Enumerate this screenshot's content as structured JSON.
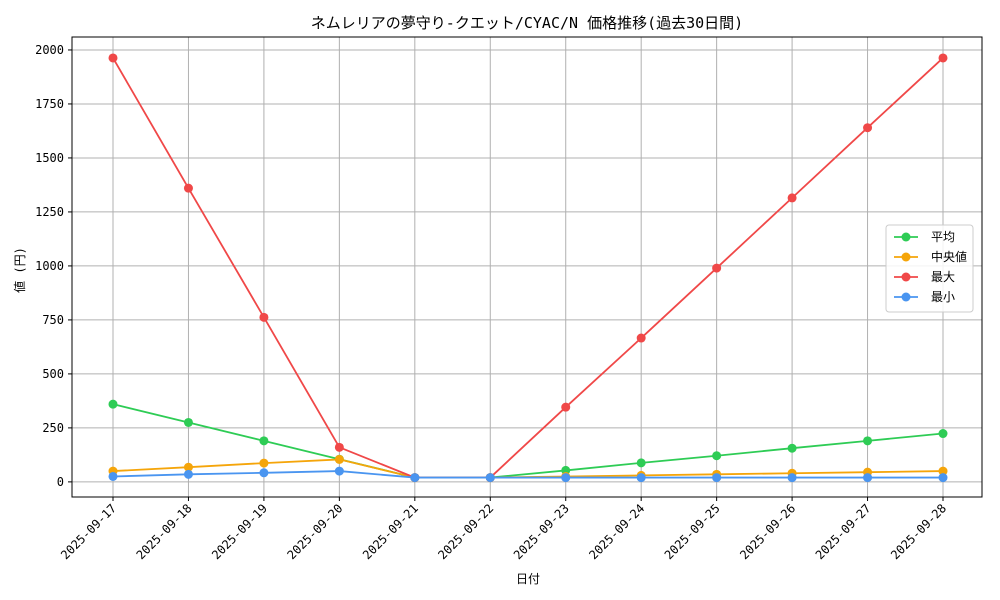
{
  "chart_data": {
    "type": "line",
    "title": "ネムレリアの夢守り-クエット/CYAC/N 価格推移(過去30日間)",
    "xlabel": "日付",
    "ylabel": "値 (円)",
    "ylim": [
      -70,
      2060
    ],
    "yticks": [
      0,
      250,
      500,
      750,
      1000,
      1250,
      1500,
      1750,
      2000
    ],
    "grid": true,
    "legend_position": "right",
    "categories": [
      "2025-09-17",
      "2025-09-18",
      "2025-09-19",
      "2025-09-20",
      "2025-09-21",
      "2025-09-22",
      "2025-09-23",
      "2025-09-24",
      "2025-09-25",
      "2025-09-26",
      "2025-09-27",
      "2025-09-28"
    ],
    "series": [
      {
        "name": "平均",
        "color": "#2ecc55",
        "values": [
          360,
          275,
          190,
          105,
          20,
          20,
          53,
          88,
          121,
          156,
          190,
          224
        ]
      },
      {
        "name": "中央値",
        "color": "#f5a50a",
        "values": [
          50,
          68,
          87,
          104,
          20,
          20,
          25,
          30,
          35,
          40,
          45,
          50
        ]
      },
      {
        "name": "最大",
        "color": "#f04848",
        "values": [
          1963,
          1360,
          762,
          160,
          20,
          20,
          346,
          666,
          990,
          1315,
          1640,
          1963
        ]
      },
      {
        "name": "最小",
        "color": "#4a95f0",
        "values": [
          25,
          35,
          42,
          50,
          20,
          20,
          20,
          20,
          20,
          20,
          20,
          20
        ]
      }
    ]
  }
}
